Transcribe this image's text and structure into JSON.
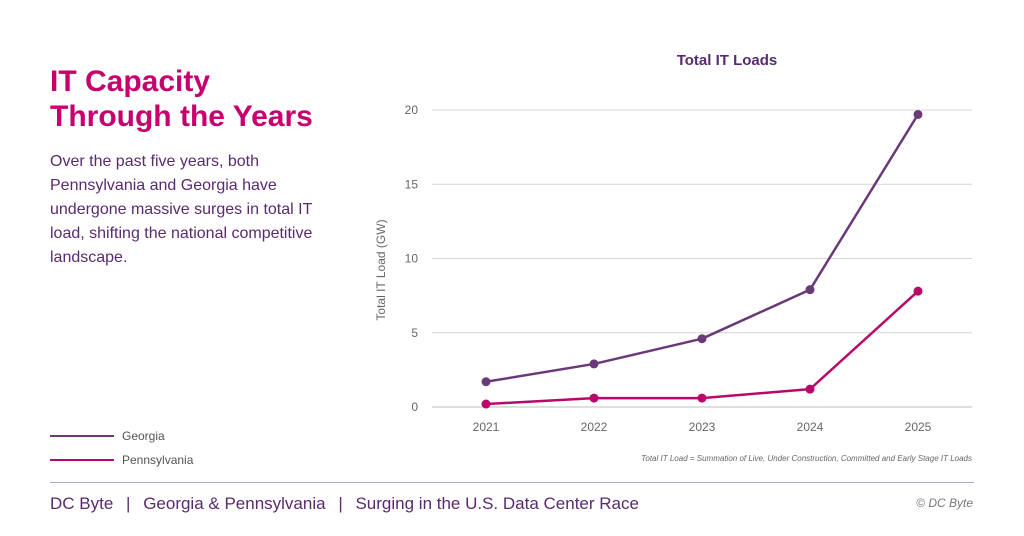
{
  "page": {
    "headline_line1": "IT Capacity",
    "headline_line2": "Through the Years",
    "intro": "Over the past five years, both Pennsylvania and Georgia have undergone massive surges in total IT load, shifting the national competitive landscape.",
    "footer": {
      "brand": "DC Byte",
      "subject": "Georgia & Pennsylvania",
      "headline": "Surging in the U.S. Data Center Race",
      "separator": "|"
    },
    "copyright": "© DC Byte"
  },
  "chart_data": {
    "type": "line",
    "title": "Total IT Loads",
    "xlabel": "",
    "ylabel": "Total IT Load (GW)",
    "x": [
      2021,
      2022,
      2023,
      2024,
      2025
    ],
    "ylim": [
      0,
      20
    ],
    "yticks": [
      0,
      5,
      10,
      15,
      20
    ],
    "grid": true,
    "legend_position": "bottom-left",
    "footnote": "Total IT Load = Summation of Live, Under Construction, Committed and Early Stage IT Loads",
    "series": [
      {
        "name": "Georgia",
        "color": "#6a3a78",
        "values": [
          1.7,
          2.9,
          4.6,
          7.9,
          19.7
        ]
      },
      {
        "name": "Pennsylvania",
        "color": "#b8096b",
        "values": [
          0.2,
          0.6,
          0.6,
          1.2,
          7.8
        ]
      }
    ]
  }
}
